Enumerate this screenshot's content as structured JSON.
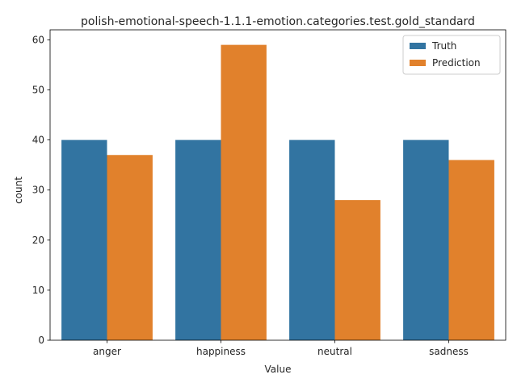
{
  "chart_data": {
    "type": "bar",
    "title": "polish-emotional-speech-1.1.1-emotion.categories.test.gold_standard",
    "xlabel": "Value",
    "ylabel": "count",
    "categories": [
      "anger",
      "happiness",
      "neutral",
      "sadness"
    ],
    "series": [
      {
        "name": "Truth",
        "values": [
          40,
          40,
          40,
          40
        ],
        "color": "#3274a1"
      },
      {
        "name": "Prediction",
        "values": [
          37,
          59,
          28,
          36
        ],
        "color": "#e1812c"
      }
    ],
    "ylim": [
      0,
      62
    ],
    "yticks": [
      0,
      10,
      20,
      30,
      40,
      50,
      60
    ],
    "grid": false,
    "legend_position": "top-right"
  }
}
